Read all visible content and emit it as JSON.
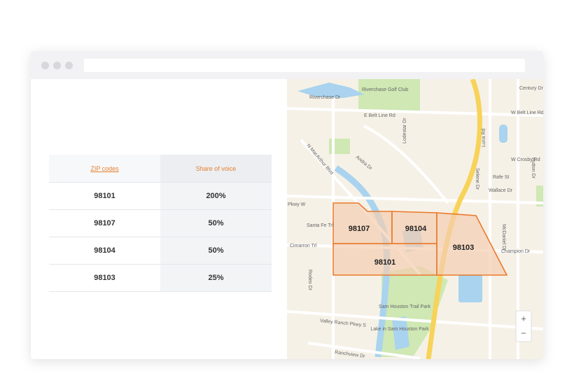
{
  "table": {
    "header": [
      "ZIP codes",
      "Share of voice"
    ],
    "rows": [
      [
        "98101",
        "200%"
      ],
      [
        "98107",
        "50%"
      ],
      [
        "98104",
        "50%"
      ],
      [
        "98103",
        "25%"
      ]
    ]
  },
  "map": {
    "zips": [
      "98107",
      "98104",
      "98103",
      "98101"
    ],
    "streets": [
      "Riverchase Golf Club",
      "Riverchase Dr",
      "E Belt Line Rd",
      "W Belt Line Rd",
      "Century Dr",
      "N MacArthur Blvd",
      "Luna Rd",
      "Cimarron Trl",
      "Santa Fe Trl",
      "Pkwy W",
      "Champion Dr",
      "Wallace Dr",
      "W Crosby Rd",
      "Valley Ranch Pkwy S",
      "Ranchview Dr",
      "Lodestar Dr",
      "Andra Dr",
      "Rafe St",
      "Selene Dr",
      "McDaniel Dr",
      "Hutton Dr",
      "Rodeo Dr"
    ],
    "parks": [
      "Sam Houston Trail Park",
      "Lake in Sam Houston Park"
    ],
    "zoom": [
      "+",
      "−"
    ]
  }
}
